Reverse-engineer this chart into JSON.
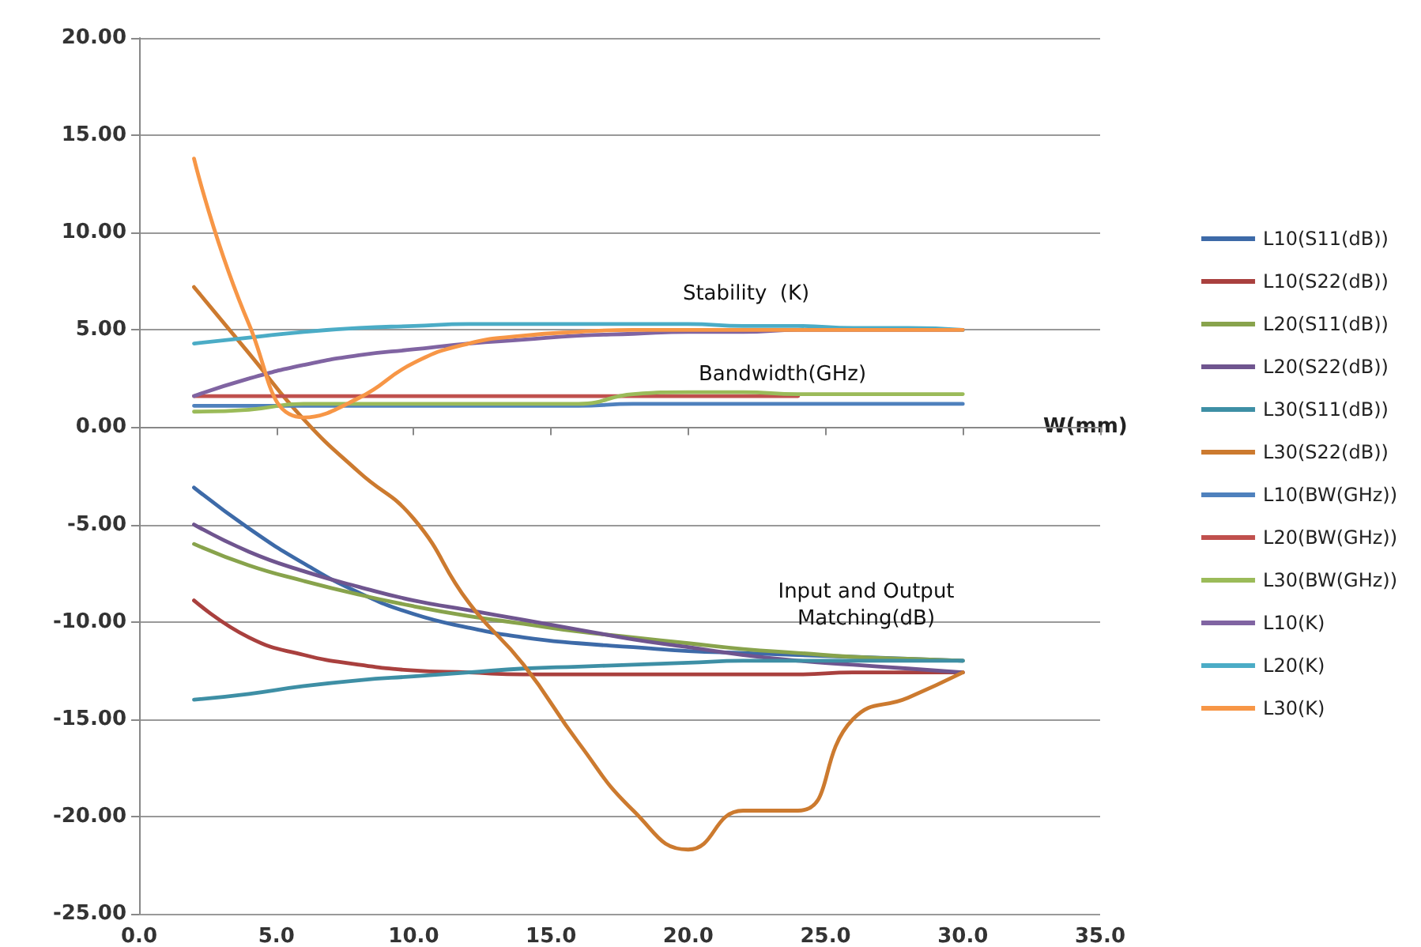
{
  "chart_data": {
    "type": "line",
    "xlabel": "W(mm)",
    "x": [
      2,
      4,
      6,
      8,
      10,
      12,
      14,
      16,
      18,
      20,
      22,
      24,
      26,
      28,
      30
    ],
    "xlim": [
      0,
      35
    ],
    "xticks": [
      {
        "value": 0,
        "label": "0.0"
      },
      {
        "value": 5,
        "label": "5.0"
      },
      {
        "value": 10,
        "label": "10.0"
      },
      {
        "value": 15,
        "label": "15.0"
      },
      {
        "value": 20,
        "label": "20.0"
      },
      {
        "value": 25,
        "label": "25.0"
      },
      {
        "value": 30,
        "label": "30.0"
      },
      {
        "value": 35,
        "label": "35.0"
      }
    ],
    "ylim": [
      -25,
      20
    ],
    "yticks": [
      {
        "value": -25,
        "label": "-25.00"
      },
      {
        "value": -20,
        "label": "-20.00"
      },
      {
        "value": -15,
        "label": "-15.00"
      },
      {
        "value": -10,
        "label": "-10.00"
      },
      {
        "value": -5,
        "label": "-5.00"
      },
      {
        "value": 0,
        "label": "0.00"
      },
      {
        "value": 5,
        "label": "5.00"
      },
      {
        "value": 10,
        "label": "10.00"
      },
      {
        "value": 15,
        "label": "15.00"
      },
      {
        "value": 20,
        "label": "20.00"
      }
    ],
    "grid": "y",
    "legend": "right",
    "marker": "none",
    "line_style": "solid",
    "annotations": [
      "Stability  (K)",
      "Bandwidth(GHz)",
      "Input and Output\nMatching(dB)"
    ],
    "series": [
      {
        "name": "L10(S11(dB))",
        "color": "#3d6aa8",
        "values": [
          -3.1,
          -5.2,
          -7.0,
          -8.5,
          -9.6,
          -10.3,
          -10.8,
          -11.1,
          -11.3,
          -11.5,
          -11.6,
          -11.7,
          -11.8,
          -11.9,
          -12.0
        ]
      },
      {
        "name": "L10(S22(dB))",
        "color": "#a9403e",
        "values": [
          -8.9,
          -10.8,
          -11.7,
          -12.2,
          -12.5,
          -12.6,
          -12.7,
          -12.7,
          -12.7,
          -12.7,
          -12.7,
          -12.7,
          -12.6,
          -12.6,
          -12.6
        ]
      },
      {
        "name": "L20(S11(dB))",
        "color": "#88a34c",
        "values": [
          -6.0,
          -7.1,
          -7.9,
          -8.6,
          -9.2,
          -9.7,
          -10.1,
          -10.5,
          -10.8,
          -11.1,
          -11.4,
          -11.6,
          -11.8,
          -11.9,
          -12.0
        ]
      },
      {
        "name": "L20(S22(dB))",
        "color": "#6f558f",
        "values": [
          -5.0,
          -6.4,
          -7.4,
          -8.2,
          -8.9,
          -9.4,
          -9.9,
          -10.4,
          -10.9,
          -11.3,
          -11.7,
          -12.0,
          -12.2,
          -12.4,
          -12.6
        ]
      },
      {
        "name": "L30(S11(dB))",
        "color": "#3e8fa5",
        "values": [
          -14.0,
          -13.7,
          -13.3,
          -13.0,
          -12.8,
          -12.6,
          -12.4,
          -12.3,
          -12.2,
          -12.1,
          -12.0,
          -12.0,
          -12.0,
          -12.0,
          -12.0
        ]
      },
      {
        "name": "L30(S22(dB))",
        "color": "#cc7a2f",
        "values": [
          7.2,
          3.8,
          0.4,
          -2.3,
          -4.7,
          -9.0,
          -12.2,
          -16.2,
          -19.7,
          -21.7,
          -19.7,
          -19.7,
          -15.0,
          -13.9,
          -12.6
        ]
      },
      {
        "name": "L10(BW(GHz))",
        "color": "#4f81bd",
        "values": [
          1.1,
          1.1,
          1.1,
          1.1,
          1.1,
          1.1,
          1.1,
          1.1,
          1.2,
          1.2,
          1.2,
          1.2,
          1.2,
          1.2,
          1.2
        ]
      },
      {
        "name": "L20(BW(GHz))",
        "color": "#c0504d",
        "values": [
          1.6,
          1.6,
          1.6,
          1.6,
          1.6,
          1.6,
          1.6,
          1.6,
          1.6,
          1.6,
          1.6,
          1.6,
          null,
          null,
          null
        ]
      },
      {
        "name": "L30(BW(GHz))",
        "color": "#9bbb59",
        "values": [
          0.8,
          0.9,
          1.2,
          1.2,
          1.2,
          1.2,
          1.2,
          1.2,
          1.7,
          1.8,
          1.8,
          1.7,
          1.7,
          1.7,
          1.7
        ]
      },
      {
        "name": "L10(K)",
        "color": "#8064a2",
        "values": [
          1.6,
          2.5,
          3.2,
          3.7,
          4.0,
          4.3,
          4.5,
          4.7,
          4.8,
          4.9,
          4.9,
          5.0,
          5.0,
          5.0,
          5.0
        ]
      },
      {
        "name": "L20(K)",
        "color": "#4bacc6",
        "values": [
          4.3,
          4.6,
          4.9,
          5.1,
          5.2,
          5.3,
          5.3,
          5.3,
          5.3,
          5.3,
          5.2,
          5.2,
          5.1,
          5.1,
          5.0
        ]
      },
      {
        "name": "L30(K)",
        "color": "#f79646",
        "values": [
          13.8,
          5.3,
          0.5,
          1.5,
          3.3,
          4.3,
          4.7,
          4.9,
          5.0,
          5.0,
          5.0,
          5.0,
          5.0,
          5.0,
          5.0
        ]
      }
    ]
  }
}
